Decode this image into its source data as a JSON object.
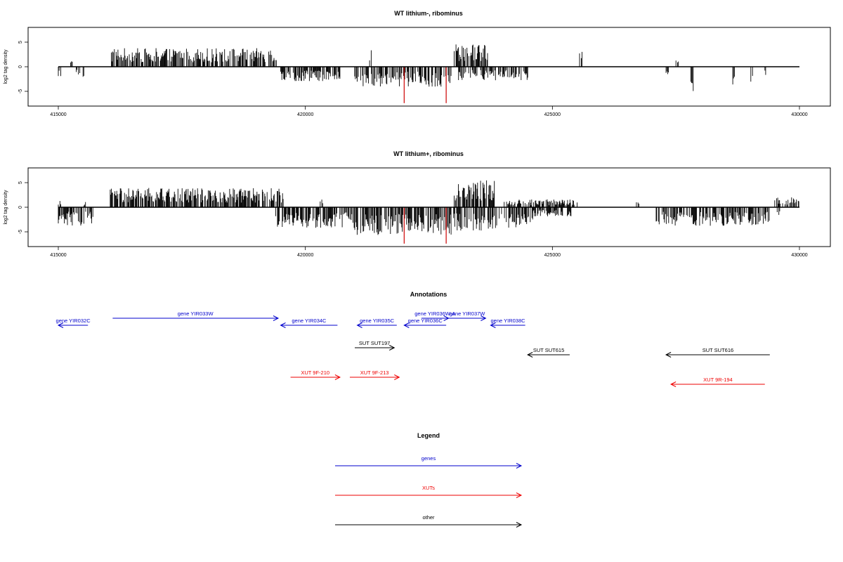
{
  "chart_data": [
    {
      "type": "bar",
      "title": "WT lithium-, ribominus",
      "xlabel": "",
      "ylabel": "log2 tag density",
      "xlim": [
        415000,
        430000
      ],
      "ylim": [
        -8,
        8
      ],
      "xticks": [
        415000,
        420000,
        425000,
        430000
      ],
      "yticks": [
        -5,
        0,
        5
      ],
      "grid": false,
      "colors": {
        "bars": "#000000",
        "highlight": "#cc0000"
      },
      "highlight_bars": [
        {
          "x": 422000,
          "y": -7.4
        },
        {
          "x": 422850,
          "y": -7.4
        }
      ],
      "series": [
        {
          "strand": "plus",
          "segments": [
            {
              "x": [
                415250,
                415300
              ],
              "mean": 1.5
            },
            {
              "x": [
                416050,
                419450
              ],
              "mean": 2.6
            },
            {
              "x": [
                421300,
                421350
              ],
              "mean": 2.6
            },
            {
              "x": [
                423000,
                423700
              ],
              "mean": 3.3
            },
            {
              "x": [
                425550,
                425600
              ],
              "mean": 2.2
            },
            {
              "x": [
                427500,
                427550
              ],
              "mean": 0.9
            }
          ]
        },
        {
          "strand": "minus",
          "segments": [
            {
              "x": [
                415000,
                415050
              ],
              "mean": -2.0
            },
            {
              "x": [
                415350,
                415450
              ],
              "mean": -1.2
            },
            {
              "x": [
                415500,
                415550
              ],
              "mean": -2.8
            },
            {
              "x": [
                419500,
                420700
              ],
              "mean": -2.0
            },
            {
              "x": [
                421000,
                422950
              ],
              "mean": -2.8
            },
            {
              "x": [
                423100,
                424500
              ],
              "mean": -1.9
            },
            {
              "x": [
                427300,
                427350
              ],
              "mean": -2.7
            },
            {
              "x": [
                427800,
                427850
              ],
              "mean": -4.0
            },
            {
              "x": [
                428650,
                428700
              ],
              "mean": -3.1
            },
            {
              "x": [
                429000,
                429050
              ],
              "mean": -2.2
            },
            {
              "x": [
                429300,
                429350
              ],
              "mean": -1.9
            }
          ]
        }
      ]
    },
    {
      "type": "bar",
      "title": "WT lithium+, ribominus",
      "xlabel": "",
      "ylabel": "log2 tag density",
      "xlim": [
        415000,
        430000
      ],
      "ylim": [
        -8,
        8
      ],
      "xticks": [
        415000,
        420000,
        425000,
        430000
      ],
      "yticks": [
        -5,
        0,
        5
      ],
      "grid": false,
      "colors": {
        "bars": "#000000",
        "highlight": "#cc0000"
      },
      "highlight_bars": [
        {
          "x": 422000,
          "y": -7.4
        },
        {
          "x": 422850,
          "y": -7.4
        }
      ],
      "series": [
        {
          "strand": "plus",
          "segments": [
            {
              "x": [
                415000,
                415050
              ],
              "mean": 1.5
            },
            {
              "x": [
                415500,
                415550
              ],
              "mean": 0.9
            },
            {
              "x": [
                416050,
                419550
              ],
              "mean": 2.7
            },
            {
              "x": [
                420300,
                420350
              ],
              "mean": 1.2
            },
            {
              "x": [
                423000,
                423850
              ],
              "mean": 3.8
            },
            {
              "x": [
                424000,
                425500
              ],
              "mean": 1.1
            },
            {
              "x": [
                426700,
                426750
              ],
              "mean": 0.7
            },
            {
              "x": [
                429500,
                430000
              ],
              "mean": 1.4
            }
          ]
        },
        {
          "strand": "minus",
          "segments": [
            {
              "x": [
                415000,
                415700
              ],
              "mean": -2.6
            },
            {
              "x": [
                419400,
                421000
              ],
              "mean": -2.9
            },
            {
              "x": [
                421000,
                422950
              ],
              "mean": -3.9
            },
            {
              "x": [
                423000,
                424600
              ],
              "mean": -3.3
            },
            {
              "x": [
                424600,
                425400
              ],
              "mean": -1.3
            },
            {
              "x": [
                427100,
                429400
              ],
              "mean": -2.6
            },
            {
              "x": [
                429550,
                429600
              ],
              "mean": -1.5
            }
          ]
        }
      ]
    }
  ],
  "annotations": {
    "title": "Annotations",
    "colors": {
      "gene": "#0000cc",
      "xut": "#ee0000",
      "other": "#000000"
    },
    "features": [
      {
        "label": "gene YIR032C",
        "kind": "gene",
        "start": 415000,
        "end": 415600,
        "strand": "-",
        "row": 0
      },
      {
        "label": "gene YIR033W",
        "kind": "gene",
        "start": 416100,
        "end": 419450,
        "strand": "+",
        "row": 1
      },
      {
        "label": "gene YIR034C",
        "kind": "gene",
        "start": 419500,
        "end": 420650,
        "strand": "-",
        "row": 0
      },
      {
        "label": "gene YIR035C",
        "kind": "gene",
        "start": 421050,
        "end": 421850,
        "strand": "-",
        "row": 0
      },
      {
        "label": "gene YIR036C",
        "kind": "gene",
        "start": 422000,
        "end": 422850,
        "strand": "-",
        "row": 0
      },
      {
        "label": "gene YIR036W-A",
        "kind": "gene",
        "start": 422350,
        "end": 422900,
        "strand": "+",
        "row": 1
      },
      {
        "label": "gene YIR037W",
        "kind": "gene",
        "start": 422900,
        "end": 423650,
        "strand": "+",
        "row": 1
      },
      {
        "label": "gene YIR038C",
        "kind": "gene",
        "start": 423750,
        "end": 424450,
        "strand": "-",
        "row": 0
      },
      {
        "label": "SUT SUT197",
        "kind": "other",
        "start": 421000,
        "end": 421800,
        "strand": "+",
        "row": 2
      },
      {
        "label": "SUT SUT615",
        "kind": "other",
        "start": 424500,
        "end": 425350,
        "strand": "-",
        "row": 3
      },
      {
        "label": "SUT SUT616",
        "kind": "other",
        "start": 427300,
        "end": 429400,
        "strand": "-",
        "row": 3
      },
      {
        "label": "XUT 9F-210",
        "kind": "xut",
        "start": 419700,
        "end": 420700,
        "strand": "+",
        "row": 4
      },
      {
        "label": "XUT 9F-213",
        "kind": "xut",
        "start": 420900,
        "end": 421900,
        "strand": "+",
        "row": 4
      },
      {
        "label": "XUT 9R-194",
        "kind": "xut",
        "start": 427400,
        "end": 429300,
        "strand": "-",
        "row": 5
      }
    ]
  },
  "legend": {
    "title": "Legend",
    "items": [
      {
        "label": "genes",
        "kind": "gene"
      },
      {
        "label": "XUTs",
        "kind": "xut"
      },
      {
        "label": "other",
        "kind": "other"
      }
    ]
  }
}
